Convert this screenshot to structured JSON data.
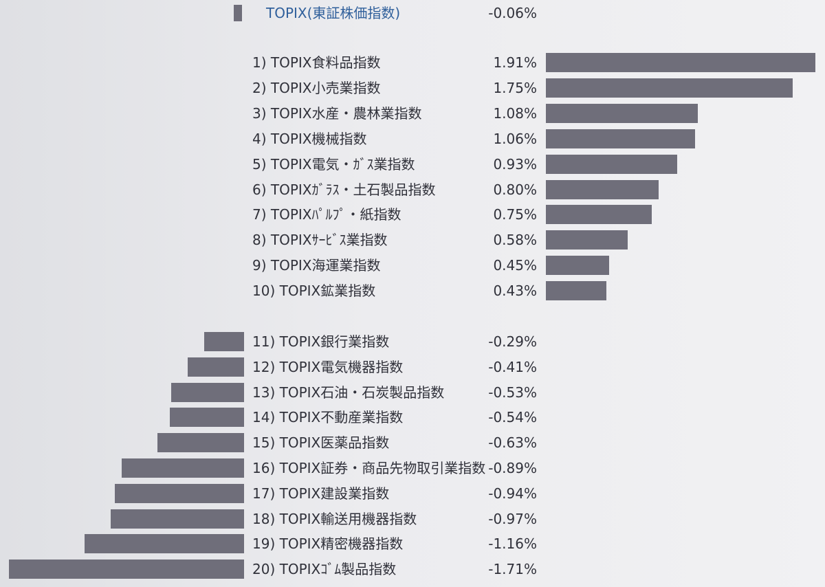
{
  "chart_data": {
    "type": "bar",
    "orientation": "horizontal",
    "unit": "%",
    "header": {
      "name": "TOPIX(東証株価指数)",
      "value": -0.06,
      "value_label": "-0.06%"
    },
    "gainers": [
      {
        "rank": "1)",
        "name": "TOPIX食料品指数",
        "value": 1.91,
        "value_label": "1.91%"
      },
      {
        "rank": "2)",
        "name": "TOPIX小売業指数",
        "value": 1.75,
        "value_label": "1.75%"
      },
      {
        "rank": "3)",
        "name": "TOPIX水産・農林業指数",
        "value": 1.08,
        "value_label": "1.08%"
      },
      {
        "rank": "4)",
        "name": "TOPIX機械指数",
        "value": 1.06,
        "value_label": "1.06%"
      },
      {
        "rank": "5)",
        "name": "TOPIX電気・ｶﾞｽ業指数",
        "value": 0.93,
        "value_label": "0.93%"
      },
      {
        "rank": "6)",
        "name": "TOPIXｶﾞﾗｽ・土石製品指数",
        "value": 0.8,
        "value_label": "0.80%"
      },
      {
        "rank": "7)",
        "name": "TOPIXﾊﾟﾙﾌﾟ・紙指数",
        "value": 0.75,
        "value_label": "0.75%"
      },
      {
        "rank": "8)",
        "name": "TOPIXｻｰﾋﾞｽ業指数",
        "value": 0.58,
        "value_label": "0.58%"
      },
      {
        "rank": "9)",
        "name": "TOPIX海運業指数",
        "value": 0.45,
        "value_label": "0.45%"
      },
      {
        "rank": "10)",
        "name": "TOPIX鉱業指数",
        "value": 0.43,
        "value_label": "0.43%"
      }
    ],
    "losers": [
      {
        "rank": "11)",
        "name": "TOPIX銀行業指数",
        "value": -0.29,
        "value_label": "-0.29%"
      },
      {
        "rank": "12)",
        "name": "TOPIX電気機器指数",
        "value": -0.41,
        "value_label": "-0.41%"
      },
      {
        "rank": "13)",
        "name": "TOPIX石油・石炭製品指数",
        "value": -0.53,
        "value_label": "-0.53%"
      },
      {
        "rank": "14)",
        "name": "TOPIX不動産業指数",
        "value": -0.54,
        "value_label": "-0.54%"
      },
      {
        "rank": "15)",
        "name": "TOPIX医薬品指数",
        "value": -0.63,
        "value_label": "-0.63%"
      },
      {
        "rank": "16)",
        "name": "TOPIX証券・商品先物取引業指数",
        "value": -0.89,
        "value_label": "-0.89%"
      },
      {
        "rank": "17)",
        "name": "TOPIX建設業指数",
        "value": -0.94,
        "value_label": "-0.94%"
      },
      {
        "rank": "18)",
        "name": "TOPIX輸送用機器指数",
        "value": -0.97,
        "value_label": "-0.97%"
      },
      {
        "rank": "19)",
        "name": "TOPIX精密機器指数",
        "value": -1.16,
        "value_label": "-1.16%"
      },
      {
        "rank": "20)",
        "name": "TOPIXｺﾞﾑ製品指数",
        "value": -1.71,
        "value_label": "-1.71%"
      }
    ],
    "colors": {
      "bar": "#6f6e7a",
      "header_label": "#2f5f9b",
      "text": "#30313a"
    }
  }
}
